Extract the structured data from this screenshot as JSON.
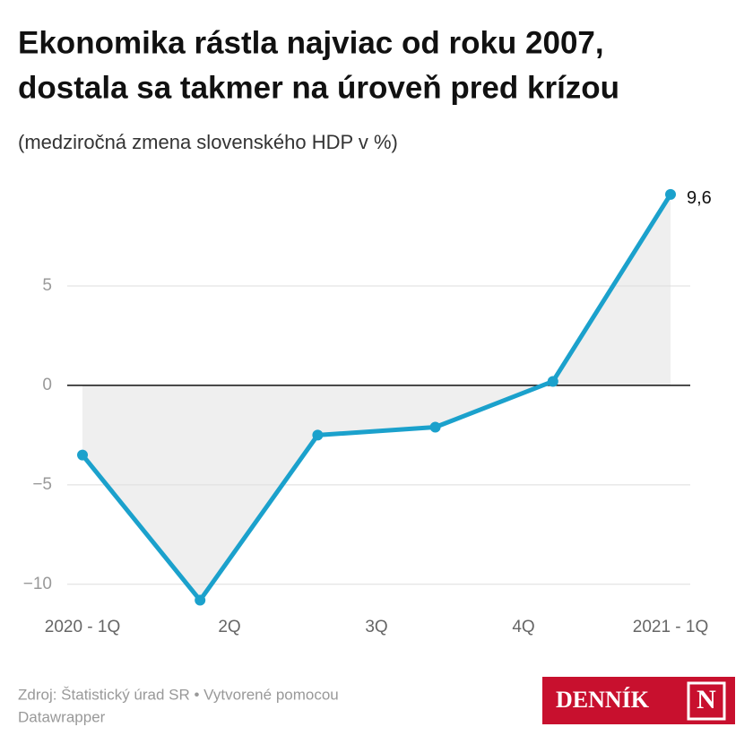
{
  "chart_data": {
    "type": "line",
    "title": "Ekonomika rástla najviac od roku 2007,",
    "title_line2": "dostala sa takmer na úroveň pred krízou",
    "subtitle": "(medziročná zmena slovenského HDP v %)",
    "x": [
      0,
      1,
      2,
      3,
      4,
      5
    ],
    "series": [
      {
        "name": "HDP",
        "color": "#1ba1cc",
        "values": [
          -3.5,
          -10.8,
          -2.5,
          -2.1,
          0.2,
          9.6
        ],
        "value_labels": [
          null,
          null,
          null,
          null,
          null,
          "9,6"
        ]
      }
    ],
    "xlim": [
      0,
      5
    ],
    "xticks": [
      {
        "value": 0,
        "label": "2020 - 1Q"
      },
      {
        "value": 1.25,
        "label": "2Q"
      },
      {
        "value": 2.5,
        "label": "3Q"
      },
      {
        "value": 3.75,
        "label": "4Q"
      },
      {
        "value": 5,
        "label": "2021 - 1Q"
      }
    ],
    "ylim": [
      -11,
      10
    ],
    "yticks": [
      {
        "value": -10,
        "label": "−10"
      },
      {
        "value": -5,
        "label": "−5"
      },
      0,
      5
    ],
    "grid": true,
    "area": true,
    "source": "Zdroj: Štatistický úrad SR • Vytvorené pomocou",
    "source_line2": "Datawrapper",
    "logo": "DENNÍK",
    "logo_mark": "N"
  }
}
